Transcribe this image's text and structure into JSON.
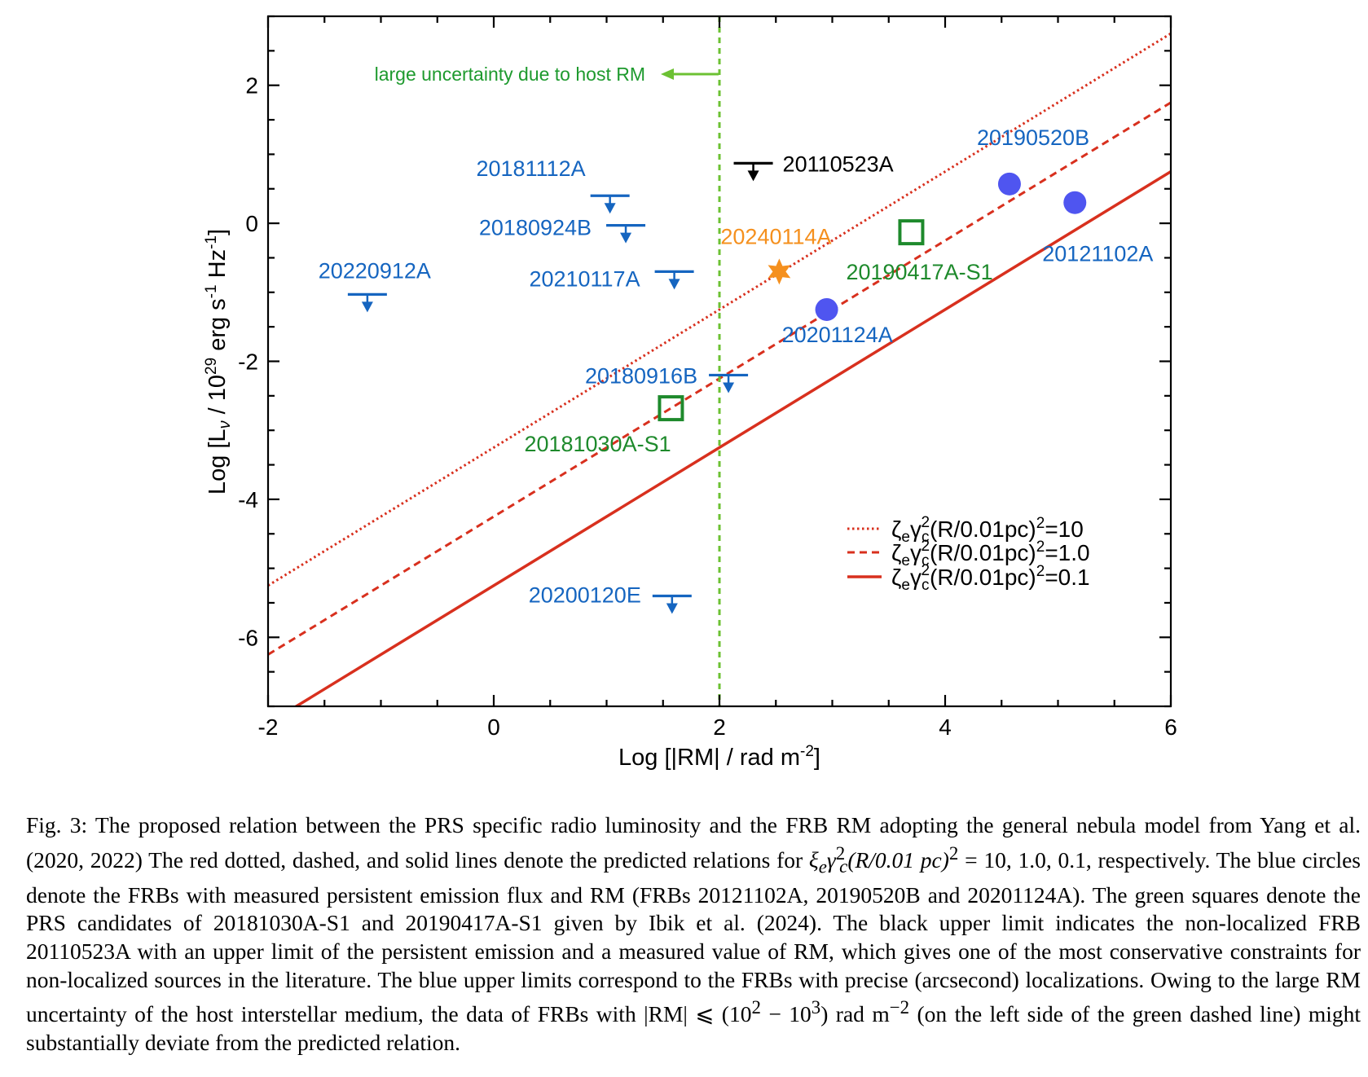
{
  "chart_data": {
    "type": "scatter",
    "xlabel_parts": [
      "Log [|RM| / rad m",
      "-2",
      "]"
    ],
    "ylabel_parts": [
      "Log [L",
      "ν",
      " / 10",
      "29",
      " erg s",
      "-1",
      " Hz",
      "-1",
      "]"
    ],
    "xlim": [
      -2,
      6
    ],
    "ylim": [
      -7,
      3
    ],
    "x_major_ticks": [
      -2,
      0,
      2,
      4,
      6
    ],
    "x_tick_labels": [
      "-2",
      "0",
      "2",
      "4",
      "6"
    ],
    "y_major_ticks": [
      -6,
      -4,
      -2,
      0,
      2
    ],
    "y_tick_labels": [
      "-6",
      "-4",
      "-2",
      "0",
      "2"
    ],
    "grid": false,
    "legend_position": "lower-right",
    "model_lines": [
      {
        "name": "ζeγc²(R/0.01pc)²=10",
        "style": "dotted",
        "color": "#d8301e",
        "slope": 1,
        "intercept": -3.25
      },
      {
        "name": "ζeγc²(R/0.01pc)²=1.0",
        "style": "dashed",
        "color": "#d8301e",
        "slope": 1,
        "intercept": -4.25
      },
      {
        "name": "ζeγc²(R/0.01pc)²=0.1",
        "style": "solid",
        "color": "#d8301e",
        "slope": 1,
        "intercept": -5.25
      }
    ],
    "legend_entries": [
      {
        "prefix": "ζ",
        "sub1": "e",
        "mid": "γ",
        "sub2": "c",
        "sup1": "2",
        "rest": "(R/0.01pc)",
        "sup2": "2",
        "value": "=10",
        "style": "dotted"
      },
      {
        "prefix": "ζ",
        "sub1": "e",
        "mid": "γ",
        "sub2": "c",
        "sup1": "2",
        "rest": "(R/0.01pc)",
        "sup2": "2",
        "value": "=1.0",
        "style": "dashed"
      },
      {
        "prefix": "ζ",
        "sub1": "e",
        "mid": "γ",
        "sub2": "c",
        "sup1": "2",
        "rest": "(R/0.01pc)",
        "sup2": "2",
        "value": "=0.1",
        "style": "solid"
      }
    ],
    "vertical_line": {
      "x": 2,
      "style": "dashed",
      "color": "#6cc133",
      "annotation": "large uncertainty due to host RM"
    },
    "measured_frbs": [
      {
        "name": "20121102A",
        "x": 5.15,
        "y": 0.3,
        "color": "#4f55f0"
      },
      {
        "name": "20190520B",
        "x": 4.57,
        "y": 0.57,
        "color": "#4f55f0"
      },
      {
        "name": "20201124A",
        "x": 2.95,
        "y": -1.25,
        "color": "#4f55f0"
      }
    ],
    "candidates": [
      {
        "name": "20181030A-S1",
        "x": 1.57,
        "y": -2.68,
        "color": "#1e8a2c"
      },
      {
        "name": "20190417A-S1",
        "x": 3.7,
        "y": -0.13,
        "color": "#1e8a2c"
      }
    ],
    "star_point": {
      "name": "20240114A",
      "x": 2.53,
      "y": -0.7,
      "color": "#f5901e"
    },
    "upper_limits": [
      {
        "name": "20110523A",
        "x": 2.3,
        "y": 0.87,
        "color": "#000000"
      },
      {
        "name": "20181112A",
        "x": 1.03,
        "y": 0.4,
        "color": "#1565c0"
      },
      {
        "name": "20180924B",
        "x": 1.17,
        "y": -0.03,
        "color": "#1565c0"
      },
      {
        "name": "20210117A",
        "x": 1.6,
        "y": -0.7,
        "color": "#1565c0"
      },
      {
        "name": "20220912A",
        "x": -1.12,
        "y": -1.03,
        "color": "#1565c0"
      },
      {
        "name": "20180916B",
        "x": 2.08,
        "y": -2.2,
        "color": "#1565c0"
      },
      {
        "name": "20200120E",
        "x": 1.58,
        "y": -5.4,
        "color": "#1565c0"
      }
    ]
  },
  "caption": {
    "segments": [
      "Fig. 3: The proposed relation between the PRS specific radio luminosity and the FRB RM adopting the general nebula model from Yang et al. (2020, 2022) The red dotted, dashed, and solid lines denote the predicted relations for ",
      "ξ",
      "e",
      "γ",
      "2",
      "c",
      "(R/0.01 pc)",
      "2",
      " = 10, 1.0, 0.1, respectively. The blue circles denote the FRBs with measured persistent emission flux and RM (FRBs 20121102A, 20190520B and 20201124A). The green squares denote the PRS candidates of 20181030A-S1 and 20190417A-S1 given by Ibik et al. (2024). The black upper limit indicates the non-localized FRB 20110523A with an upper limit of the persistent emission and a measured value of RM, which gives one of the most conservative constraints for non-localized sources in the literature. The blue upper limits correspond to the FRBs with precise (arcsecond) localizations. Owing to the large RM uncertainty of the host interstellar medium, the data of FRBs with |RM| ⩽ (10",
      "2",
      " − 10",
      "3",
      ") rad m",
      "−2",
      " (on the left side of the green dashed line) might substantially deviate from the predicted relation."
    ]
  }
}
